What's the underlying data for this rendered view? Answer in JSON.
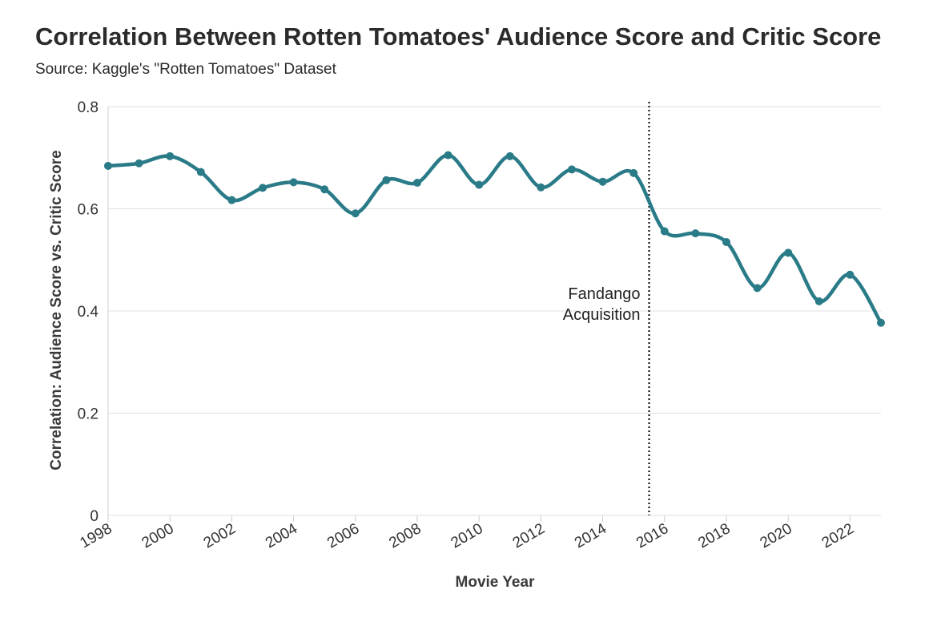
{
  "chart_data": {
    "type": "line",
    "title": "Correlation Between Rotten Tomatoes' Audience Score and Critic Score",
    "subtitle": "Source: Kaggle's \"Rotten Tomatoes\" Dataset",
    "xlabel": "Movie Year",
    "ylabel": "Correlation: Audience Score vs. Critic Score",
    "xlim": [
      1998,
      2023
    ],
    "ylim": [
      0,
      0.8
    ],
    "x_ticks": [
      "1998",
      "2000",
      "2002",
      "2004",
      "2006",
      "2008",
      "2010",
      "2012",
      "2014",
      "2016",
      "2018",
      "2020",
      "2022"
    ],
    "y_ticks": [
      "0",
      "0.2",
      "0.4",
      "0.6",
      "0.8"
    ],
    "grid": true,
    "series": [
      {
        "x": [
          1998,
          1999,
          2000,
          2001,
          2002,
          2003,
          2004,
          2005,
          2006,
          2007,
          2008,
          2009,
          2010,
          2011,
          2012,
          2013,
          2014,
          2015,
          2016,
          2017,
          2018,
          2019,
          2020,
          2021,
          2022,
          2023
        ],
        "values": [
          0.684,
          0.689,
          0.703,
          0.672,
          0.617,
          0.641,
          0.652,
          0.638,
          0.591,
          0.656,
          0.651,
          0.705,
          0.647,
          0.703,
          0.642,
          0.677,
          0.653,
          0.67,
          0.556,
          0.552,
          0.535,
          0.445,
          0.514,
          0.419,
          0.471,
          0.377
        ],
        "color": "#2a7b88"
      }
    ],
    "annotations": [
      {
        "x": 2015.5,
        "lines": [
          "Fandango",
          "Acquisition"
        ],
        "style": "dotted-vertical"
      }
    ]
  }
}
